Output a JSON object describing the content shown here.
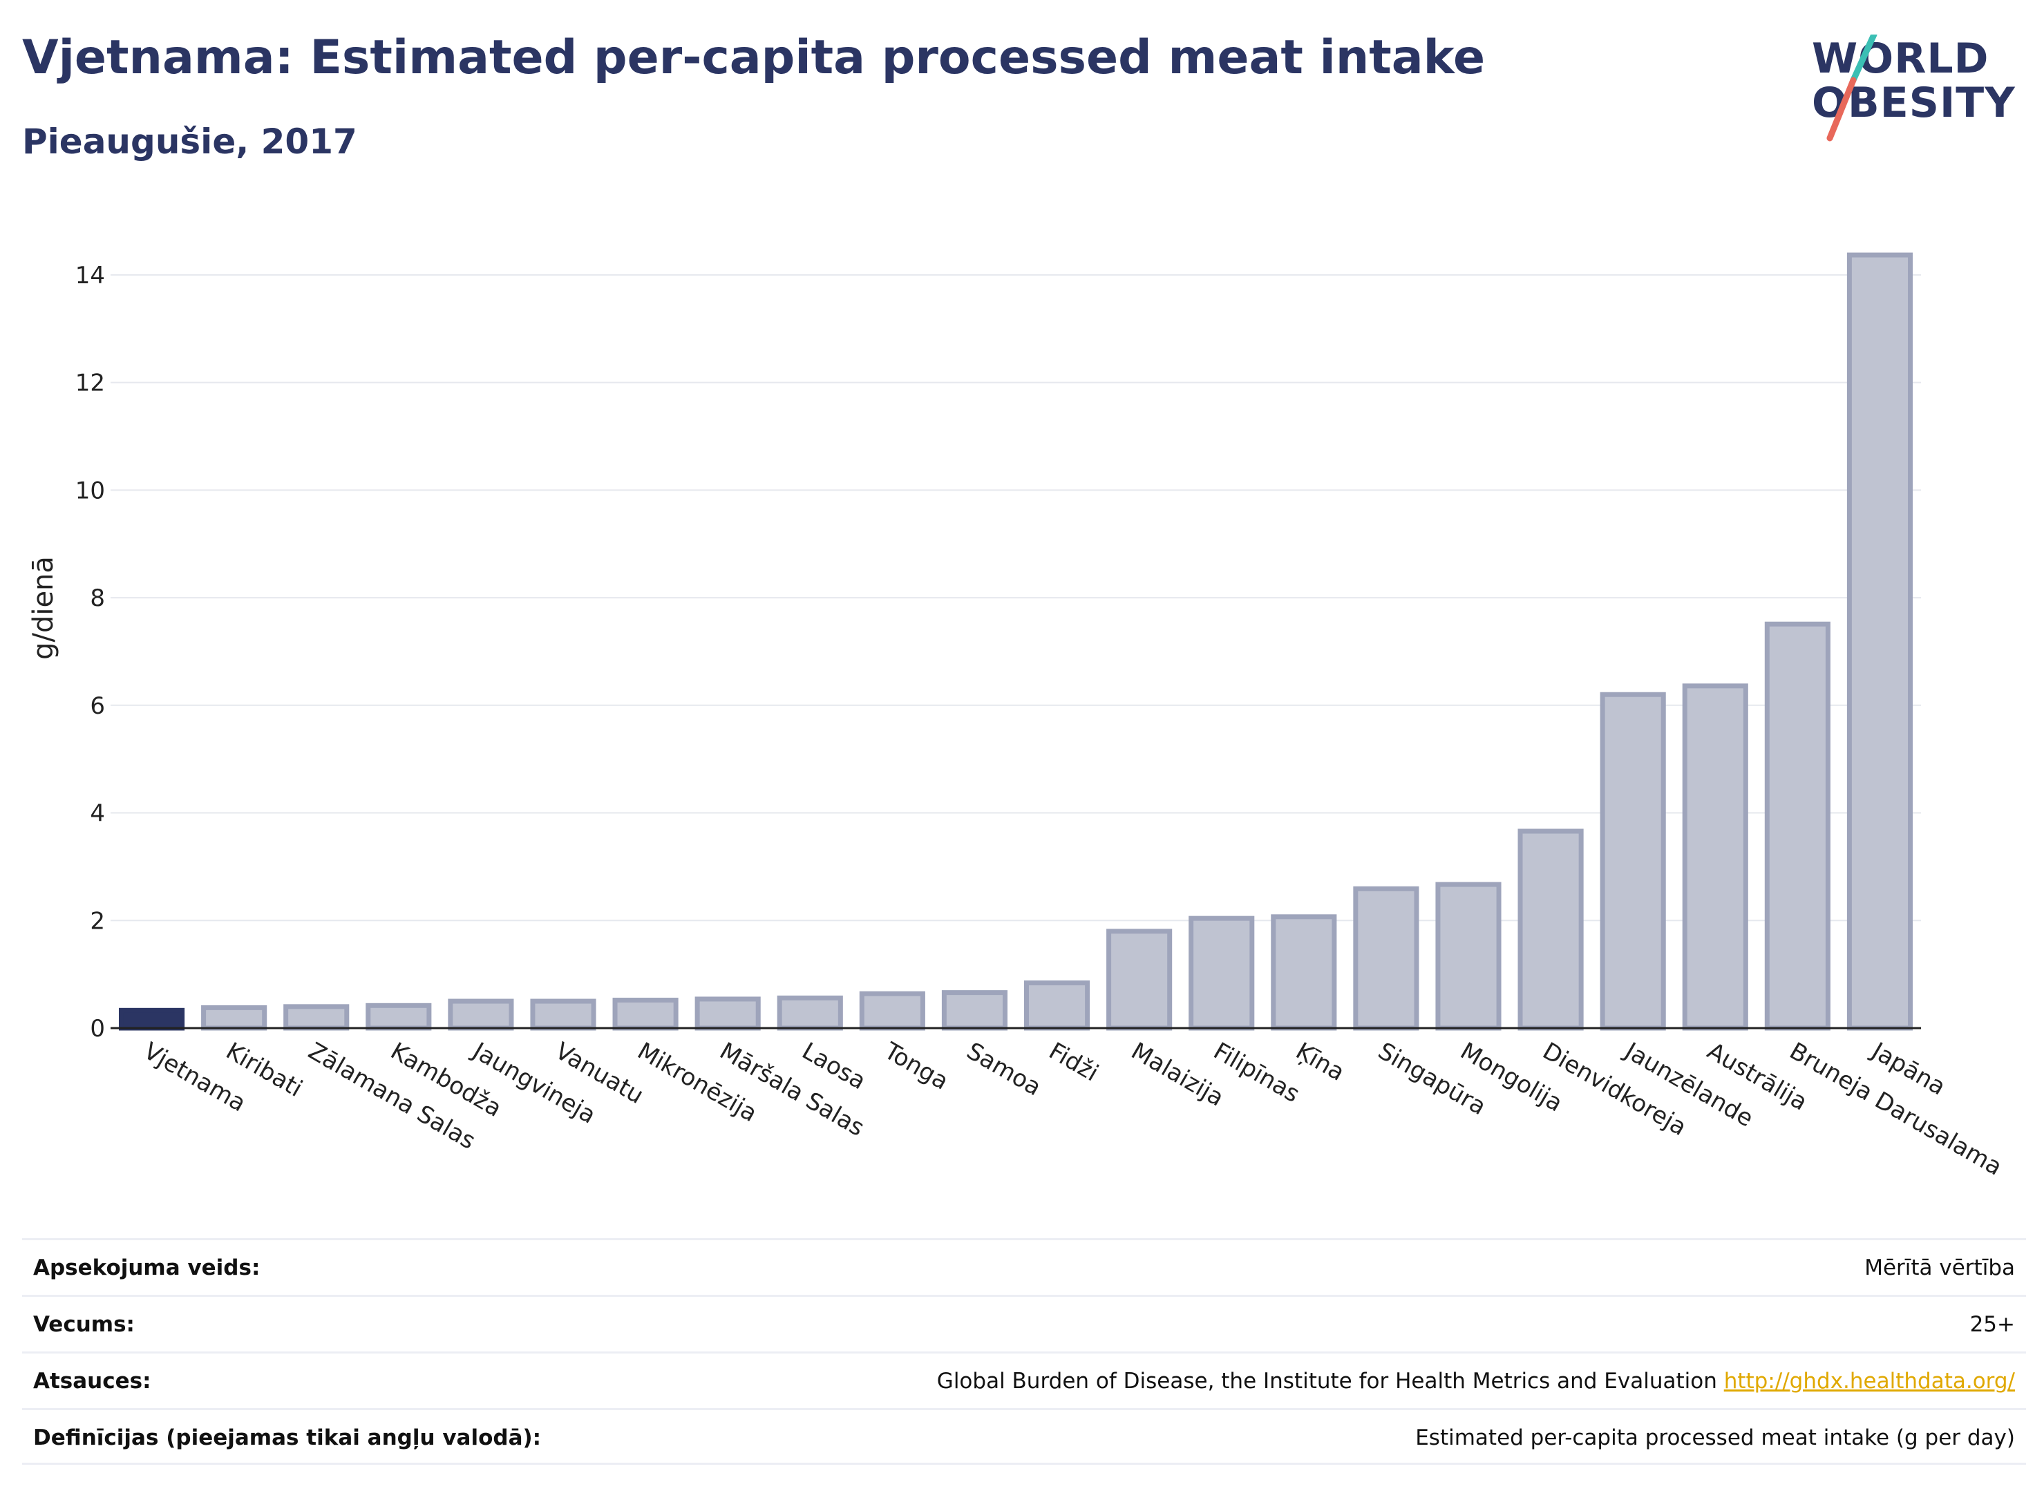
{
  "header": {
    "title": "Vjetnama: Estimated per-capita processed meat intake",
    "subtitle": "Pieaugušie, 2017"
  },
  "logo": {
    "line1": "WORLD",
    "line2": "OBESITY",
    "colors": {
      "text": "#2b3563",
      "slash_top": "#3bbfb4",
      "slash_bottom": "#e8685a"
    }
  },
  "chart_data": {
    "type": "bar",
    "ylabel": "g/dienā",
    "ylim": [
      0,
      15
    ],
    "yticks": [
      0,
      2,
      4,
      6,
      8,
      10,
      12,
      14
    ],
    "grid": true,
    "highlight_color": "#2b3563",
    "bar_color": "#bfc3d1",
    "bar_edge_color": "#9ea4bb",
    "categories": [
      "Vjetnama",
      "Kiribati",
      "Zālamana Salas",
      "Kambodža",
      "Jaungvineja",
      "Vanuatu",
      "Mikronēzija",
      "Māršala Salas",
      "Laosa",
      "Tonga",
      "Samoa",
      "Fidži",
      "Malaizija",
      "Filipīnas",
      "Ķīna",
      "Singapūra",
      "Mongolija",
      "Dienvidkoreja",
      "Jaunzēlande",
      "Austrālija",
      "Bruneja Darusalama",
      "Japāna"
    ],
    "values": [
      0.33,
      0.38,
      0.4,
      0.42,
      0.5,
      0.5,
      0.52,
      0.54,
      0.56,
      0.64,
      0.66,
      0.84,
      1.8,
      2.04,
      2.07,
      2.59,
      2.67,
      3.66,
      6.2,
      6.36,
      7.51,
      14.37
    ],
    "highlight": "Vjetnama"
  },
  "meta": [
    {
      "label": "Apsekojuma veids:",
      "value": "Mērītā vērtība"
    },
    {
      "label": "Vecums:",
      "value": "25+"
    },
    {
      "label": "Atsauces:",
      "value": "Global Burden of Disease, the Institute for Health Metrics and Evaluation",
      "link": "http://ghdx.healthdata.org/"
    },
    {
      "label": "Definīcijas (pieejamas tikai angļu valodā):",
      "value": "Estimated per-capita processed meat intake (g per day)"
    }
  ]
}
